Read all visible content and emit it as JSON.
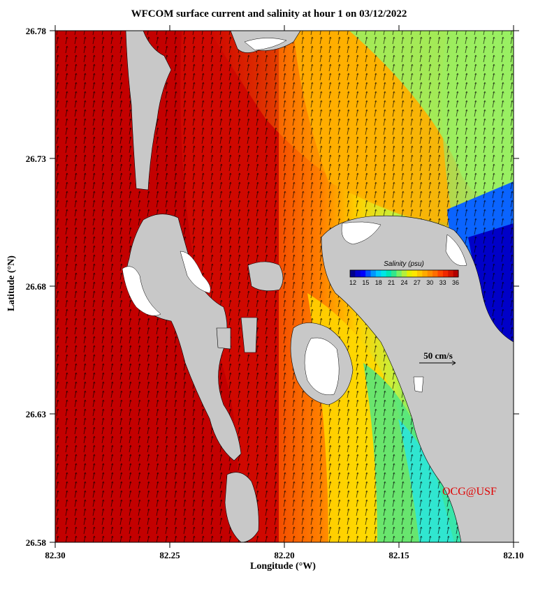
{
  "title": "WFCOM surface current and salinity at hour 1 on 03/12/2022",
  "xlabel": "Longitude (°W)",
  "ylabel": "Latitude (°N)",
  "credit": "OCG@USF",
  "x_ticks": [
    "82.30",
    "82.25",
    "82.20",
    "82.15",
    "82.10"
  ],
  "y_ticks": [
    "26.78",
    "26.73",
    "26.68",
    "26.63",
    "26.58"
  ],
  "colorbar": {
    "title": "Salinity (psu)",
    "labels": [
      "12",
      "15",
      "18",
      "21",
      "24",
      "27",
      "30",
      "33",
      "36"
    ],
    "colors": [
      "#00008b",
      "#0000cd",
      "#0000ff",
      "#0050ff",
      "#0096ff",
      "#00c8ff",
      "#00e6e6",
      "#00e6b4",
      "#32e68c",
      "#78f064",
      "#b4f03c",
      "#e6f000",
      "#ffe600",
      "#ffc800",
      "#ffaa00",
      "#ff8c00",
      "#ff6e00",
      "#ff4600",
      "#f02800",
      "#d21400",
      "#b40000"
    ]
  },
  "vector_scale_label": "50 cm/s",
  "map_colors": {
    "land": "#c8c8c8",
    "dry": "#ffffff"
  },
  "chart_data": {
    "type": "map",
    "title": "WFCOM surface current and salinity at hour 1 on 03/12/2022",
    "xlabel": "Longitude (°W)",
    "ylabel": "Latitude (°N)",
    "xlim": [
      82.3,
      82.1
    ],
    "ylim": [
      26.58,
      26.78
    ],
    "colorbar_range": [
      12,
      36
    ],
    "fields": [
      "surface current vectors",
      "salinity"
    ],
    "vector_scale": "50 cm/s"
  }
}
